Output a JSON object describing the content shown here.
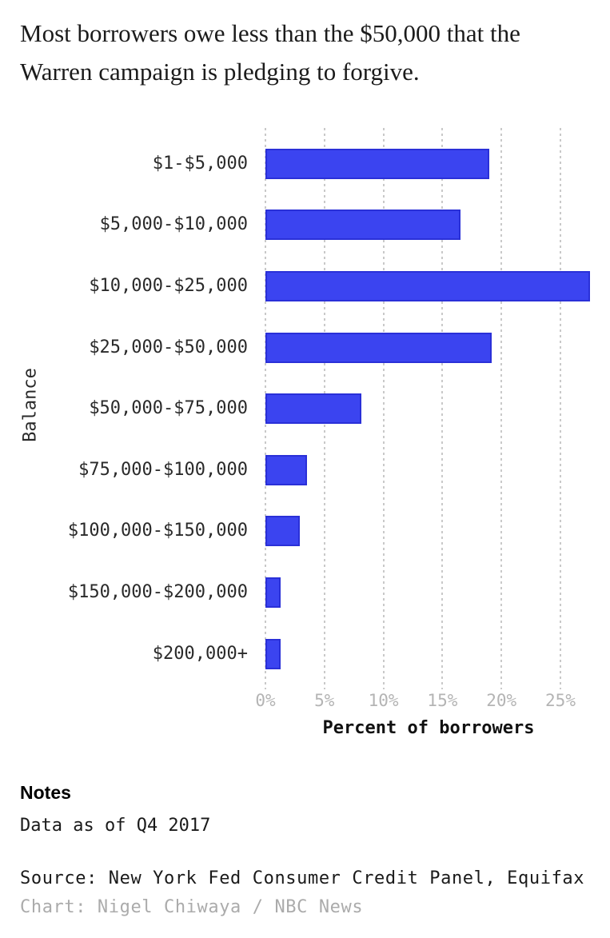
{
  "title": "Most borrowers owe less than the $50,000 that the Warren campaign is pledging to forgive.",
  "chart_data": {
    "type": "bar",
    "orientation": "horizontal",
    "title": "Most borrowers owe less than the $50,000 that the Warren campaign is pledging to forgive.",
    "categories": [
      "$1-$5,000",
      "$5,000-$10,000",
      "$10,000-$25,000",
      "$25,000-$50,000",
      "$50,000-$75,000",
      "$75,000-$100,000",
      "$100,000-$150,000",
      "$150,000-$200,000",
      "$200,000+"
    ],
    "values": [
      19.0,
      16.5,
      27.5,
      19.2,
      8.1,
      3.5,
      2.9,
      1.3,
      1.3
    ],
    "xlabel": "Percent of borrowers",
    "ylabel": "Balance",
    "xlim": [
      0,
      27.7
    ],
    "xtick_values": [
      0,
      5,
      10,
      15,
      20,
      25
    ],
    "xtick_labels": [
      "0%",
      "5%",
      "10%",
      "15%",
      "20%",
      "25%"
    ],
    "grid": "vertical-dotted",
    "legend": "none",
    "bar_fill_color": "#3b44f0",
    "bar_border_color": "#2a30d8",
    "gridline_color": "#c9c9c9",
    "tick_label_color": "#b4b4b4"
  },
  "notes": {
    "header": "Notes",
    "body": "Data as of Q4 2017"
  },
  "source_line": "Source: New York Fed Consumer Credit Panel, Equifax",
  "credit_line": "Chart: Nigel Chiwaya / NBC News"
}
